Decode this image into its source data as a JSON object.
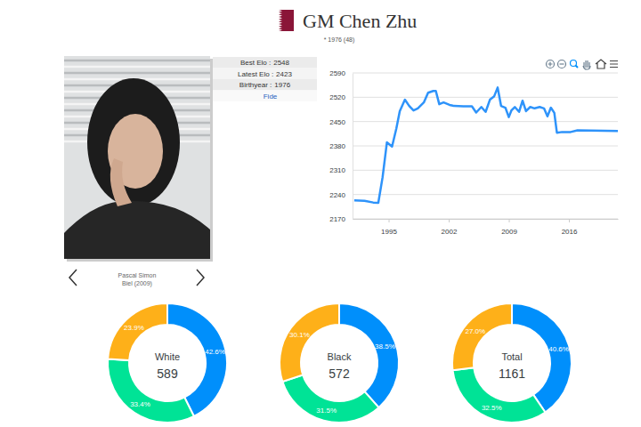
{
  "header": {
    "title": "GM Chen Zhu",
    "subtitle": "* 1976 (48)"
  },
  "profile": {
    "rows": [
      {
        "label": "Best Elo :",
        "value": 2548
      },
      {
        "label": "Latest Elo :",
        "value": 2423
      },
      {
        "label": "Birthyear :",
        "value": 1976
      }
    ],
    "link": "Fide",
    "photo_caption": [
      "Pascal Simon",
      "Biel (2009)"
    ]
  },
  "chart_data": [
    {
      "type": "line",
      "color": "#2E93FA",
      "grid": true,
      "x": [
        1991.0,
        1992.2,
        1993.2,
        1993.8,
        1994.3,
        1994.8,
        1995.4,
        1995.9,
        1996.3,
        1996.9,
        1997.4,
        1997.9,
        1998.4,
        1999.1,
        1999.6,
        2000.2,
        2000.5,
        2000.9,
        2001.4,
        2002.1,
        2002.6,
        2003.7,
        2004.7,
        2005.2,
        2005.8,
        2006.3,
        2006.8,
        2007.3,
        2007.7,
        2008.1,
        2008.6,
        2009.0,
        2009.3,
        2009.7,
        2010.2,
        2010.6,
        2011.0,
        2011.5,
        2012.0,
        2012.6,
        2013.1,
        2013.5,
        2013.9,
        2014.3,
        2014.6,
        2015.2,
        2016.2,
        2017.0,
        2021.7
      ],
      "values": [
        2223,
        2222,
        2217,
        2216,
        2290,
        2390,
        2378,
        2430,
        2480,
        2513,
        2495,
        2482,
        2488,
        2505,
        2533,
        2538,
        2538,
        2500,
        2505,
        2498,
        2495,
        2494,
        2494,
        2476,
        2492,
        2478,
        2513,
        2523,
        2548,
        2495,
        2490,
        2463,
        2482,
        2492,
        2478,
        2510,
        2480,
        2492,
        2488,
        2492,
        2488,
        2465,
        2490,
        2475,
        2418,
        2420,
        2420,
        2425,
        2423
      ],
      "xlim": [
        1990.8,
        2021.7
      ],
      "xticks": [
        1995,
        2002,
        2009,
        2016
      ],
      "ylim": [
        2170,
        2590
      ],
      "yticks": [
        2170,
        2240,
        2310,
        2380,
        2450,
        2520,
        2590
      ]
    },
    {
      "type": "donut",
      "title": "White",
      "total": 589,
      "data_labels": true,
      "values": [
        42.6,
        33.4,
        23.9
      ],
      "value_labels": [
        "42.6%",
        "33.4%",
        "23.9%"
      ],
      "colors": [
        "#008FFB",
        "#00E396",
        "#FEB019"
      ]
    },
    {
      "type": "donut",
      "title": "Black",
      "total": 572,
      "data_labels": true,
      "values": [
        38.5,
        31.5,
        30.1
      ],
      "value_labels": [
        "38.5%",
        "31.5%",
        "30.1%"
      ],
      "colors": [
        "#008FFB",
        "#00E396",
        "#FEB019"
      ]
    },
    {
      "type": "donut",
      "title": "Total",
      "total": 1161,
      "data_labels": true,
      "values": [
        40.6,
        32.5,
        27.0
      ],
      "value_labels": [
        "40.6%",
        "32.5%",
        "27.0%"
      ],
      "colors": [
        "#008FFB",
        "#00E396",
        "#FEB019"
      ]
    }
  ]
}
